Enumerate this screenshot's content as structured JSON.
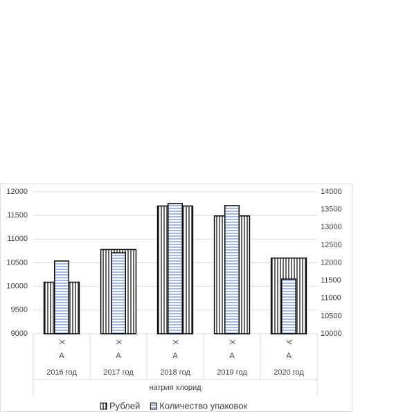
{
  "chart_data": {
    "type": "bar",
    "categories": [
      "2016 год",
      "2017 год",
      "2018 год",
      "2019 год",
      "2020 год"
    ],
    "category_level_1": [
      "Х",
      "Х",
      "Х",
      "Х",
      "У"
    ],
    "category_level_2": [
      "А",
      "А",
      "А",
      "А",
      "А"
    ],
    "category_group": "натрия хлорид",
    "series": [
      {
        "name": "Рублей",
        "color": "#000000",
        "values": [
          10090,
          10780,
          11700,
          11490,
          10600
        ]
      },
      {
        "name": "Количество упаковок",
        "color": "#4472c4",
        "axis": "y2",
        "values": [
          12050,
          12280,
          13670,
          13610,
          11540
        ]
      }
    ],
    "ylim": [
      9000,
      12000
    ],
    "yticks": [
      9000,
      9500,
      10000,
      10500,
      11000,
      11500,
      12000
    ],
    "y2lim": [
      10000,
      14000
    ],
    "y2ticks": [
      10000,
      10500,
      11000,
      11500,
      12000,
      12500,
      13000,
      13500,
      14000
    ],
    "grid": true,
    "legend": "bottom"
  }
}
